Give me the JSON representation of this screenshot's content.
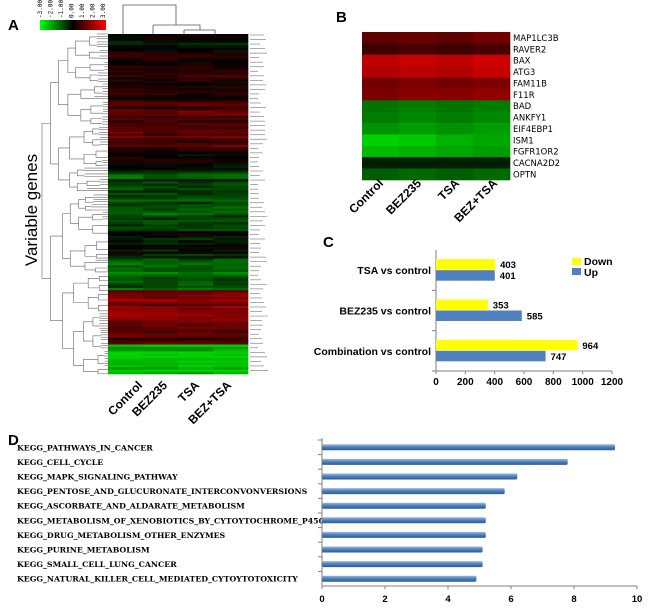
{
  "panels": {
    "a": "A",
    "b": "B",
    "c": "C",
    "d": "D"
  },
  "colors": {
    "up": "#4f81bd",
    "down": "#ffff00",
    "kegg_bar": "#4f81bd",
    "heat_low": "#00ff00",
    "heat_mid": "#000000",
    "heat_high": "#ff0000"
  },
  "heatmap_a": {
    "ylabel": "Variable genes",
    "conditions": [
      "Control",
      "BEZ235",
      "TSA",
      "BEZ+TSA"
    ],
    "color_scale_labels": [
      "-3.00",
      "-2.00",
      "-1.00",
      "0.00",
      "1.00",
      "2.00",
      "3.00"
    ]
  },
  "heatmap_b": {
    "conditions": [
      "Control",
      "BEZ235",
      "TSA",
      "BEZ+TSA"
    ],
    "genes": [
      "MAP1LC3B",
      "RAVER2",
      "BAX",
      "ATG3",
      "FAM11B",
      "F11R",
      "BAD",
      "ANKFY1",
      "EIF4EBP1",
      "ISM1",
      "FGFR1OR2",
      "CACNA2D2",
      "OPTN"
    ],
    "values": [
      [
        0.45,
        0.5,
        0.45,
        0.55
      ],
      [
        0.3,
        0.35,
        0.3,
        0.35
      ],
      [
        0.9,
        0.95,
        0.9,
        1.0
      ],
      [
        0.85,
        0.9,
        0.85,
        0.95
      ],
      [
        0.55,
        0.6,
        0.55,
        0.6
      ],
      [
        0.6,
        0.65,
        0.65,
        0.7
      ],
      [
        -0.55,
        -0.6,
        -0.55,
        -0.6
      ],
      [
        -0.6,
        -0.65,
        -0.6,
        -0.65
      ],
      [
        -0.7,
        -0.75,
        -0.7,
        -0.75
      ],
      [
        -1.0,
        -0.95,
        -0.85,
        -0.8
      ],
      [
        -0.9,
        -0.85,
        -0.8,
        -0.75
      ],
      [
        -0.15,
        -0.15,
        -0.15,
        -0.15
      ],
      [
        -0.45,
        -0.5,
        -0.45,
        -0.5
      ]
    ]
  },
  "chart_data": [
    {
      "type": "bar",
      "orientation": "horizontal",
      "panel": "C",
      "categories": [
        "TSA vs control",
        "BEZ235 vs control",
        "Combination vs control"
      ],
      "series": [
        {
          "name": "Down",
          "values": [
            403,
            353,
            964
          ]
        },
        {
          "name": "Up",
          "values": [
            401,
            585,
            747
          ]
        }
      ],
      "xlim": [
        0,
        1200
      ],
      "xticks": [
        "0",
        "200",
        "400",
        "600",
        "800",
        "1000",
        "1200"
      ],
      "legend": "top-right"
    },
    {
      "type": "bar",
      "orientation": "horizontal",
      "panel": "D",
      "categories": [
        "KEGG_PATHWAYS_IN_CANCER",
        "KEGG_CELL_CYCLE",
        "KEGG_MAPK_SIGNALING_PATHWAY",
        "KEGG_PENTOSE_AND_GLUCURONATE_INTERCONVONVERSIONS",
        "KEGG_ASCORBATE_AND_ALDARATE_METABOLISM",
        "KEGG_METABOLISM_OF_XENOBIOTICS_BY_CYTOYTOCHROME_P450",
        "KEGG_DRUG_METABOLISM_OTHER_ENZYMES",
        "KEGG_PURINE_METABOLISM",
        "KEGG_SMALL_CELL_LUNG_CANCER",
        "KEGG_NATURAL_KILLER_CELL_MEDIATED_CYTOYTOTOXICITY"
      ],
      "values": [
        9.3,
        7.8,
        6.2,
        5.8,
        5.2,
        5.2,
        5.2,
        5.1,
        5.1,
        4.9
      ],
      "xlim": [
        0,
        10
      ],
      "xticks": [
        "0",
        "2",
        "4",
        "6",
        "8",
        "10"
      ]
    }
  ]
}
